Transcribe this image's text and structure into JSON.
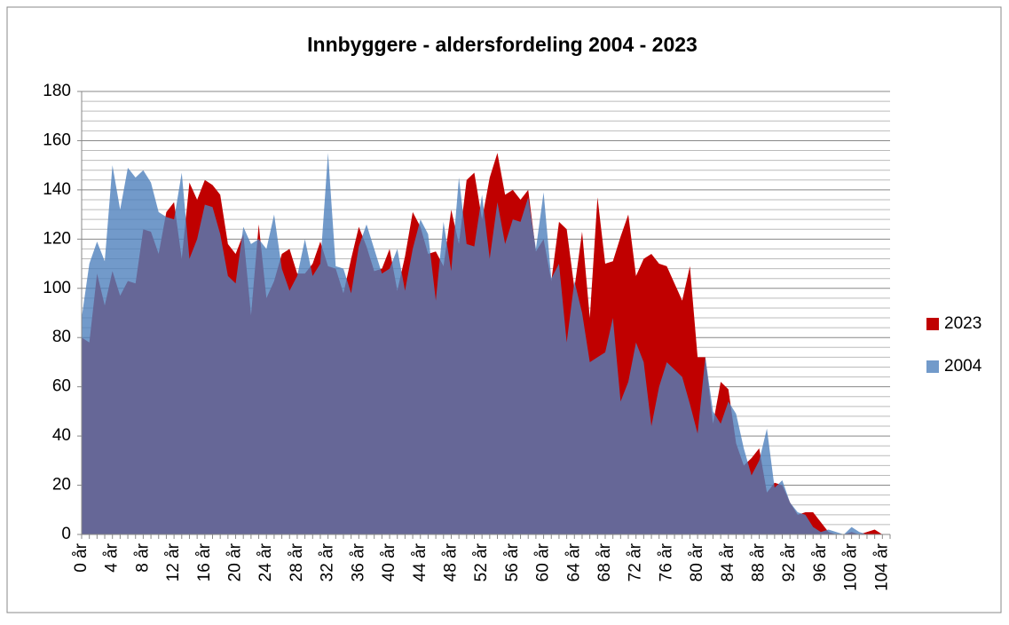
{
  "chart_data": {
    "type": "area",
    "title": "Innbyggere - aldersfordeling 2004 - 2023",
    "categories": [
      "0 år",
      null,
      null,
      null,
      "4 år",
      null,
      null,
      null,
      "8 år",
      null,
      null,
      null,
      "12 år",
      null,
      null,
      null,
      "16 år",
      null,
      null,
      null,
      "20 år",
      null,
      null,
      null,
      "24 år",
      null,
      null,
      null,
      "28 år",
      null,
      null,
      null,
      "32 år",
      null,
      null,
      null,
      "36 år",
      null,
      null,
      null,
      "40 år",
      null,
      null,
      null,
      "44 år",
      null,
      null,
      null,
      "48 år",
      null,
      null,
      null,
      "52 år",
      null,
      null,
      null,
      "56 år",
      null,
      null,
      null,
      "60 år",
      null,
      null,
      null,
      "64 år",
      null,
      null,
      null,
      "68 år",
      null,
      null,
      null,
      "72 år",
      null,
      null,
      null,
      "76 år",
      null,
      null,
      null,
      "80 år",
      null,
      null,
      null,
      "84 år",
      null,
      null,
      null,
      "88 år",
      null,
      null,
      null,
      "92 år",
      null,
      null,
      null,
      "96 år",
      null,
      null,
      null,
      "100 år",
      null,
      null,
      null,
      "104 år",
      null
    ],
    "series": [
      {
        "name": "2023",
        "color": "#c00000",
        "opacity": 1,
        "values": [
          80,
          78,
          106,
          93,
          107,
          97,
          103,
          102,
          124,
          123,
          114,
          131,
          135,
          112,
          143,
          136,
          144,
          142,
          138,
          118,
          114,
          122,
          89,
          126,
          96,
          103,
          114,
          116,
          106,
          106,
          110,
          119,
          109,
          108,
          98,
          112,
          125,
          117,
          107,
          108,
          116,
          99,
          113,
          131,
          125,
          114,
          115,
          109,
          132,
          118,
          144,
          147,
          128,
          145,
          155,
          138,
          140,
          136,
          140,
          115,
          120,
          103,
          127,
          124,
          100,
          123,
          88,
          137,
          110,
          111,
          121,
          130,
          105,
          112,
          114,
          110,
          109,
          102,
          95,
          109,
          72,
          72,
          45,
          62,
          59,
          37,
          28,
          31,
          35,
          17,
          21,
          20,
          13,
          8,
          9,
          9,
          5,
          1,
          0,
          0,
          1,
          0,
          1,
          2,
          0,
          0
        ]
      },
      {
        "name": "2004",
        "color": "#4f81bd",
        "opacity": 0.8,
        "values": [
          88,
          110,
          119,
          111,
          150,
          132,
          149,
          145,
          148,
          143,
          131,
          129,
          128,
          147,
          112,
          120,
          134,
          133,
          122,
          105,
          102,
          125,
          118,
          120,
          116,
          130,
          108,
          99,
          105,
          120,
          105,
          110,
          155,
          109,
          108,
          98,
          117,
          126,
          116,
          106,
          108,
          116,
          99,
          116,
          128,
          122,
          95,
          127,
          107,
          145,
          118,
          117,
          138,
          112,
          135,
          118,
          128,
          127,
          137,
          116,
          139,
          104,
          110,
          78,
          103,
          90,
          70,
          72,
          74,
          88,
          54,
          62,
          78,
          70,
          44,
          60,
          70,
          67,
          64,
          53,
          41,
          72,
          50,
          45,
          54,
          49,
          35,
          24,
          30,
          43,
          19,
          22,
          13,
          9,
          8,
          3,
          1,
          2,
          1,
          0,
          3,
          1,
          0,
          0,
          0,
          0
        ]
      }
    ],
    "ylim": [
      0,
      180
    ],
    "yticks": [
      0,
      20,
      40,
      60,
      80,
      100,
      120,
      140,
      160,
      180
    ],
    "grid": true,
    "legend": "right"
  }
}
